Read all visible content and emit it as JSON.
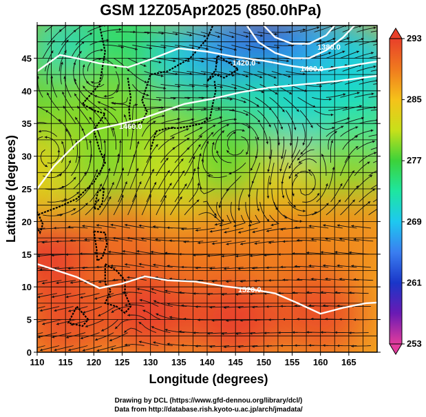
{
  "chart_data": {
    "type": "heatmap",
    "title": "GSM 12Z05Apr2025 (850.0hPa)",
    "xlabel": "Longitude (degrees)",
    "ylabel": "Latitude  (degrees)",
    "xlim": [
      110,
      170
    ],
    "ylim": [
      0,
      50
    ],
    "x_ticks": [
      110,
      115,
      120,
      125,
      130,
      135,
      140,
      145,
      150,
      155,
      160,
      165
    ],
    "y_ticks": [
      0,
      5,
      10,
      15,
      20,
      25,
      30,
      35,
      40,
      45
    ],
    "grid": true,
    "colorbar": {
      "label_values": [
        293,
        285,
        277,
        269,
        261,
        253
      ],
      "range": [
        253,
        293
      ],
      "stops": [
        {
          "value": 293,
          "color": "#e8402a"
        },
        {
          "value": 289,
          "color": "#f07a1e"
        },
        {
          "value": 285,
          "color": "#f5c21a"
        },
        {
          "value": 281,
          "color": "#c8e01a"
        },
        {
          "value": 277,
          "color": "#3cd23a"
        },
        {
          "value": 273,
          "color": "#1ee6a0"
        },
        {
          "value": 269,
          "color": "#1ec8f0"
        },
        {
          "value": 265,
          "color": "#3a7ef0"
        },
        {
          "value": 261,
          "color": "#1a36c8"
        },
        {
          "value": 257,
          "color": "#6a1ab4"
        },
        {
          "value": 253,
          "color": "#e23c9c"
        }
      ]
    },
    "contours": [
      {
        "level": "1520.0",
        "label_pos": [
          147.5,
          9.2
        ],
        "points": [
          [
            110,
            13.5
          ],
          [
            117,
            11.5
          ],
          [
            121,
            9.8
          ],
          [
            125,
            10.5
          ],
          [
            129,
            11.6
          ],
          [
            133,
            11.0
          ],
          [
            138,
            10.8
          ],
          [
            143,
            10.1
          ],
          [
            148,
            9.6
          ],
          [
            152,
            9.0
          ],
          [
            156,
            7.5
          ],
          [
            160,
            5.9
          ],
          [
            164,
            6.8
          ],
          [
            168,
            7.5
          ],
          [
            170,
            7.6
          ]
        ]
      },
      {
        "level": "1460.0",
        "label_pos": [
          126.5,
          34.2
        ],
        "points": [
          [
            110,
            25.0
          ],
          [
            113,
            28.5
          ],
          [
            117,
            32.0
          ],
          [
            120,
            34.0
          ],
          [
            124,
            34.8
          ],
          [
            128,
            35.6
          ],
          [
            132,
            36.8
          ],
          [
            136,
            38.0
          ],
          [
            141,
            38.8
          ],
          [
            146,
            39.8
          ],
          [
            151,
            40.5
          ],
          [
            157,
            41.0
          ],
          [
            163,
            41.5
          ],
          [
            170,
            42.3
          ]
        ]
      },
      {
        "level": "1420.0",
        "label_pos": [
          146.5,
          43.9
        ],
        "points": [
          [
            110,
            43.0
          ],
          [
            114,
            45.5
          ],
          [
            118,
            44.8
          ],
          [
            121,
            44.2
          ],
          [
            126,
            43.6
          ],
          [
            130,
            44.8
          ],
          [
            135,
            46.5
          ],
          [
            140,
            46.0
          ],
          [
            145,
            45.2
          ],
          [
            150,
            44.6
          ],
          [
            155,
            43.8
          ],
          [
            160,
            43.2
          ],
          [
            165,
            43.8
          ],
          [
            170,
            44.5
          ]
        ]
      },
      {
        "level": "1400.0",
        "label_pos": [
          158.5,
          43.0
        ],
        "points": [
          [
            147,
            50
          ],
          [
            149,
            47.5
          ],
          [
            152,
            45.8
          ],
          [
            155,
            45.0
          ],
          [
            158,
            45.0
          ],
          [
            161,
            46.2
          ],
          [
            164,
            48.2
          ],
          [
            166,
            50
          ]
        ]
      },
      {
        "level": "1380.0",
        "label_pos": [
          161.5,
          46.3
        ],
        "points": [
          [
            150,
            50
          ],
          [
            152,
            48.2
          ],
          [
            155,
            47.2
          ],
          [
            158,
            47.2
          ],
          [
            161,
            48.5
          ],
          [
            162.5,
            50
          ]
        ]
      }
    ],
    "temperature_field": [
      {
        "lon": 112,
        "lat": 47,
        "k": 278
      },
      {
        "lon": 118,
        "lat": 46,
        "k": 271
      },
      {
        "lon": 123,
        "lat": 43,
        "k": 272
      },
      {
        "lon": 125,
        "lat": 48,
        "k": 275
      },
      {
        "lon": 131,
        "lat": 41,
        "k": 276
      },
      {
        "lon": 138,
        "lat": 45,
        "k": 270
      },
      {
        "lon": 145,
        "lat": 46,
        "k": 266
      },
      {
        "lon": 153,
        "lat": 46,
        "k": 263
      },
      {
        "lon": 160,
        "lat": 46,
        "k": 266
      },
      {
        "lon": 167,
        "lat": 44,
        "k": 270
      },
      {
        "lon": 112,
        "lat": 37,
        "k": 278
      },
      {
        "lon": 120,
        "lat": 37,
        "k": 279
      },
      {
        "lon": 130,
        "lat": 34,
        "k": 279
      },
      {
        "lon": 140,
        "lat": 35,
        "k": 276
      },
      {
        "lon": 150,
        "lat": 37,
        "k": 272
      },
      {
        "lon": 160,
        "lat": 36,
        "k": 271
      },
      {
        "lon": 168,
        "lat": 33,
        "k": 273
      },
      {
        "lon": 112,
        "lat": 27,
        "k": 283
      },
      {
        "lon": 122,
        "lat": 29,
        "k": 279
      },
      {
        "lon": 135,
        "lat": 28,
        "k": 281
      },
      {
        "lon": 145,
        "lat": 30,
        "k": 278
      },
      {
        "lon": 155,
        "lat": 25,
        "k": 283
      },
      {
        "lon": 165,
        "lat": 27,
        "k": 279
      },
      {
        "lon": 112,
        "lat": 15,
        "k": 293
      },
      {
        "lon": 125,
        "lat": 17,
        "k": 290
      },
      {
        "lon": 140,
        "lat": 15,
        "k": 289
      },
      {
        "lon": 155,
        "lat": 17,
        "k": 289
      },
      {
        "lon": 165,
        "lat": 18,
        "k": 288
      },
      {
        "lon": 115,
        "lat": 5,
        "k": 292
      },
      {
        "lon": 130,
        "lat": 6,
        "k": 293
      },
      {
        "lon": 145,
        "lat": 5,
        "k": 293
      },
      {
        "lon": 160,
        "lat": 6,
        "k": 292
      }
    ]
  },
  "credits": {
    "line1": "Drawing by DCL (https://www.gfd-dennou.org/library/dcl/)",
    "line2": "Data from http://database.rish.kyoto-u.ac.jp/arch/jmadata/"
  }
}
